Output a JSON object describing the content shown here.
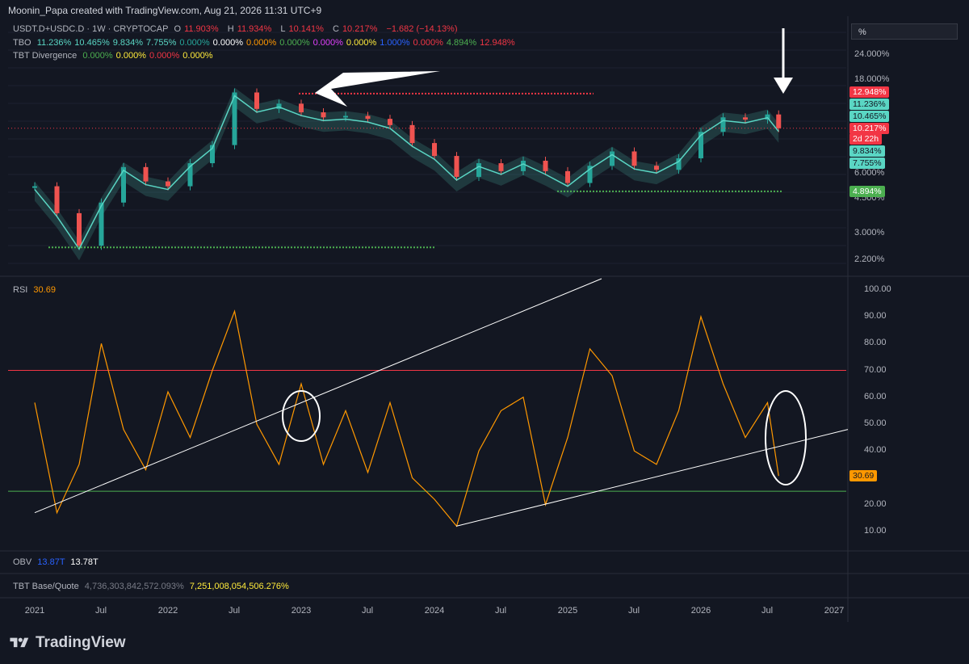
{
  "header": {
    "credit": "Moonin_Papa created with TradingView.com, Aug 21, 2026 11:31 UTC+9",
    "symbol_line": {
      "symbol": "USDT.D+USDC.D · 1W · CRYPTOCAP",
      "o_label": "O",
      "o": "11.903%",
      "h_label": "H",
      "h": "11.934%",
      "l_label": "L",
      "l": "10.141%",
      "c_label": "C",
      "c": "10.217%",
      "chg": "−1.682 (−14.13%)"
    },
    "tbo": {
      "label": "TBO",
      "values": [
        {
          "v": "11.236%",
          "color": "#5ad6c4"
        },
        {
          "v": "10.465%",
          "color": "#5ad6c4"
        },
        {
          "v": "9.834%",
          "color": "#5ad6c4"
        },
        {
          "v": "7.755%",
          "color": "#5ad6c4"
        },
        {
          "v": "0.000%",
          "color": "#26a69a"
        },
        {
          "v": "0.000%",
          "color": "#ffffff"
        },
        {
          "v": "0.000%",
          "color": "#ff9800"
        },
        {
          "v": "0.000%",
          "color": "#4caf50"
        },
        {
          "v": "0.000%",
          "color": "#e040fb"
        },
        {
          "v": "0.000%",
          "color": "#ffeb3b"
        },
        {
          "v": "1.000%",
          "color": "#2962ff"
        },
        {
          "v": "0.000%",
          "color": "#f23645"
        },
        {
          "v": "4.894%",
          "color": "#4caf50"
        },
        {
          "v": "12.948%",
          "color": "#f23645"
        }
      ]
    },
    "tbt": {
      "label": "TBT Divergence",
      "values": [
        {
          "v": "0.000%",
          "color": "#4caf50"
        },
        {
          "v": "0.000%",
          "color": "#ffeb3b"
        },
        {
          "v": "0.000%",
          "color": "#f23645"
        },
        {
          "v": "0.000%",
          "color": "#ffeb3b"
        }
      ]
    }
  },
  "scale_box": "%",
  "price_axis": {
    "ticks": [
      "24.000%",
      "18.000%",
      "6.000%",
      "4.500%",
      "3.000%",
      "2.200%"
    ],
    "badges": [
      {
        "text": "12.948%",
        "bg": "#f23645",
        "fg": "#ffffff"
      },
      {
        "text": "11.236%",
        "bg": "#5ad6c4",
        "fg": "#131722"
      },
      {
        "text": "10.465%",
        "bg": "#5ad6c4",
        "fg": "#131722"
      },
      {
        "text": "10.217%",
        "bg": "#f23645",
        "fg": "#ffffff"
      },
      {
        "text": "2d 22h",
        "bg": "#f23645",
        "fg": "#ffffff"
      },
      {
        "text": "9.834%",
        "bg": "#5ad6c4",
        "fg": "#131722"
      },
      {
        "text": "7.755%",
        "bg": "#5ad6c4",
        "fg": "#131722"
      },
      {
        "text": "4.894%",
        "bg": "#4caf50",
        "fg": "#ffffff"
      }
    ]
  },
  "rsi": {
    "label": "RSI",
    "value": "30.69",
    "ticks": [
      "100.00",
      "90.00",
      "80.00",
      "70.00",
      "60.00",
      "50.00",
      "40.00",
      "20.00",
      "10.00"
    ],
    "badge": "30.69",
    "upper": 70,
    "lower": 25
  },
  "obv": {
    "label": "OBV",
    "v1": "13.87T",
    "v2": "13.78T"
  },
  "tbt_bq": {
    "label": "TBT Base/Quote",
    "v1": "4,736,303,842,572.093%",
    "v2": "7,251,008,054,506.276%"
  },
  "x_axis": [
    "2021",
    "Jul",
    "2022",
    "Jul",
    "2023",
    "Jul",
    "2024",
    "Jul",
    "2025",
    "Jul",
    "2026",
    "Jul",
    "2027"
  ],
  "brand": "TradingView",
  "chart_data": [
    {
      "type": "line",
      "name": "USDT.D+USDC.D weekly (approximate closes)",
      "x": [
        "2021-01",
        "2021-03",
        "2021-05",
        "2021-07",
        "2021-09",
        "2021-11",
        "2022-01",
        "2022-03",
        "2022-05",
        "2022-07",
        "2022-09",
        "2022-11",
        "2023-01",
        "2023-03",
        "2023-05",
        "2023-07",
        "2023-09",
        "2023-11",
        "2024-01",
        "2024-03",
        "2024-05",
        "2024-07",
        "2024-09",
        "2024-11",
        "2025-01",
        "2025-03",
        "2025-05",
        "2025-07",
        "2025-09",
        "2025-11",
        "2026-01",
        "2026-03",
        "2026-05",
        "2026-07",
        "2026-08"
      ],
      "values": [
        5.2,
        3.8,
        2.6,
        4.3,
        6.5,
        5.5,
        5.2,
        6.8,
        8.4,
        15.5,
        12.8,
        13.6,
        12.3,
        11.6,
        11.8,
        11.4,
        10.6,
        8.6,
        7.4,
        5.8,
        6.8,
        6.2,
        7.0,
        6.2,
        5.4,
        6.6,
        7.8,
        6.6,
        6.3,
        7.2,
        9.8,
        11.6,
        11.3,
        12.0,
        10.217
      ],
      "yscale": "log",
      "ylim": [
        2.0,
        30
      ]
    },
    {
      "type": "line",
      "name": "RSI",
      "x": [
        "2021-01",
        "2021-03",
        "2021-05",
        "2021-07",
        "2021-09",
        "2021-11",
        "2022-01",
        "2022-03",
        "2022-05",
        "2022-07",
        "2022-09",
        "2022-11",
        "2023-01",
        "2023-03",
        "2023-05",
        "2023-07",
        "2023-09",
        "2023-11",
        "2024-01",
        "2024-03",
        "2024-05",
        "2024-07",
        "2024-09",
        "2024-11",
        "2025-01",
        "2025-03",
        "2025-05",
        "2025-07",
        "2025-09",
        "2025-11",
        "2026-01",
        "2026-03",
        "2026-05",
        "2026-07",
        "2026-08"
      ],
      "values": [
        58,
        17,
        35,
        80,
        48,
        33,
        62,
        45,
        70,
        92,
        50,
        35,
        65,
        35,
        55,
        32,
        58,
        30,
        22,
        12,
        40,
        55,
        60,
        20,
        45,
        78,
        68,
        40,
        35,
        55,
        90,
        65,
        45,
        58,
        30.69
      ],
      "ylim": [
        5,
        105
      ]
    }
  ]
}
